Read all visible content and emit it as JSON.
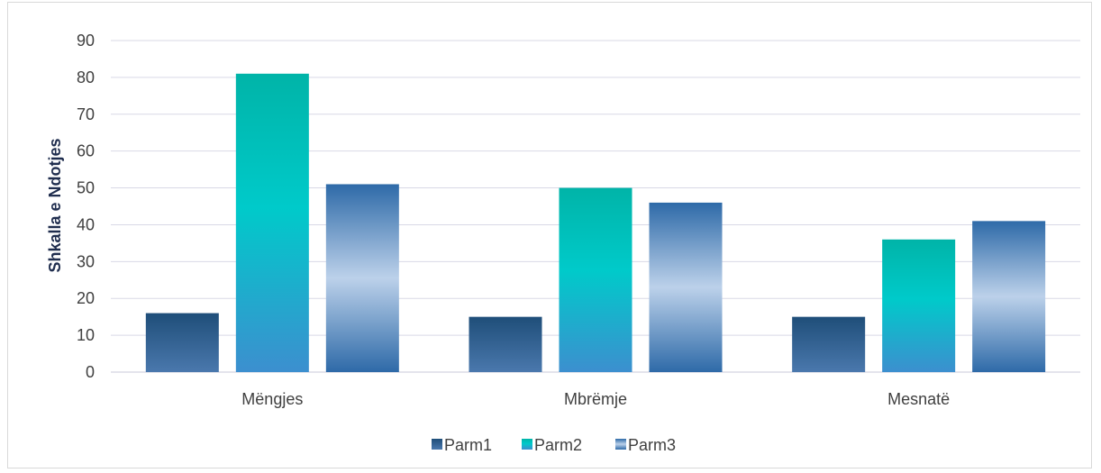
{
  "chart_data": {
    "type": "bar",
    "title": "",
    "xlabel": "",
    "ylabel": "Shkalla e Ndotjes",
    "categories": [
      "Mëngjes",
      "Mbrëmje",
      "Mesnatë"
    ],
    "series": [
      {
        "name": "Parm1",
        "values": [
          16,
          15,
          15
        ],
        "color_top": "#1f4e79",
        "color_bottom": "#4472a8"
      },
      {
        "name": "Parm2",
        "values": [
          81,
          50,
          36
        ],
        "color_top": "#00b3a8",
        "color_bottom": "#3f8fcc",
        "color_mid": "#00c8c8"
      },
      {
        "name": "Parm3",
        "values": [
          51,
          46,
          41
        ],
        "color_top": "#2e6aa8",
        "color_bottom": "#2e6aa8",
        "color_mid": "#b7cde8"
      }
    ],
    "ylim": [
      0,
      90
    ],
    "yticks": [
      0,
      10,
      20,
      30,
      40,
      50,
      60,
      70,
      80,
      90
    ],
    "grid": true,
    "legend_position": "bottom"
  }
}
